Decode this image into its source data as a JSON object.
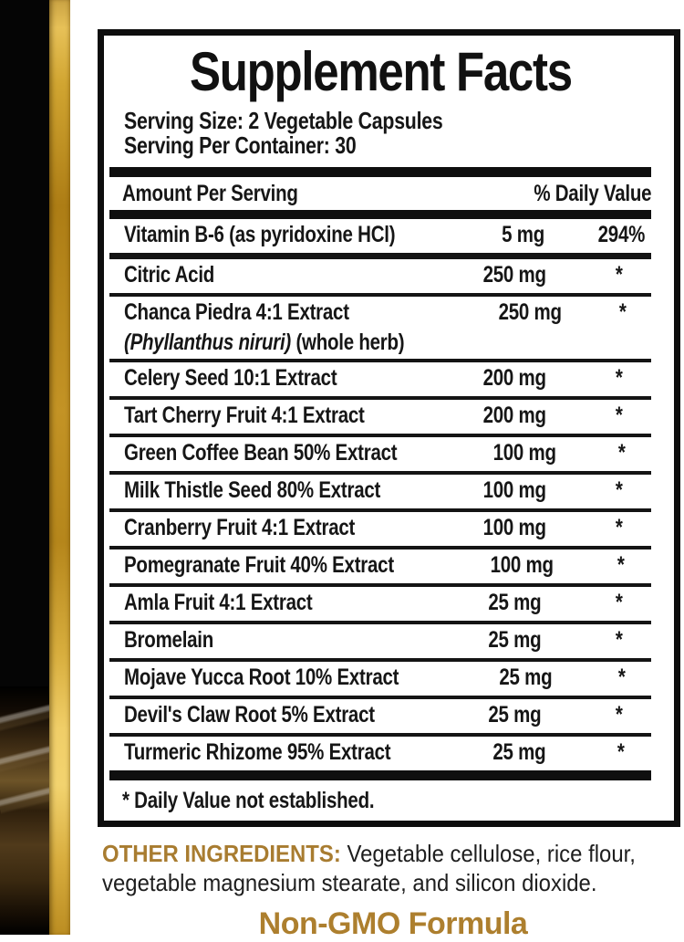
{
  "panel": {
    "title": "Supplement Facts",
    "serving_size": "Serving Size: 2 Vegetable Capsules",
    "servings_per_container": "Serving Per Container: 30",
    "header": {
      "amount": "Amount Per Serving",
      "dv": "% Daily Value"
    },
    "rows": [
      {
        "name": "Vitamin B-6 (as pyridoxine HCl)",
        "amount": "5 mg",
        "dv": "294%"
      },
      {
        "name": "Citric Acid",
        "amount": "250 mg",
        "dv": "*"
      },
      {
        "name": "Chanca Piedra 4:1 Extract",
        "name2_italic": "(Phyllanthus niruri)",
        "name2_rest": " (whole herb)",
        "amount": "250 mg",
        "dv": "*"
      },
      {
        "name": "Celery Seed 10:1 Extract",
        "amount": "200 mg",
        "dv": "*"
      },
      {
        "name": "Tart Cherry Fruit 4:1 Extract",
        "amount": "200 mg",
        "dv": "*"
      },
      {
        "name": "Green Coffee Bean 50% Extract",
        "amount": "100 mg",
        "dv": "*"
      },
      {
        "name": "Milk Thistle Seed 80% Extract",
        "amount": "100 mg",
        "dv": "*"
      },
      {
        "name": "Cranberry Fruit 4:1 Extract",
        "amount": "100 mg",
        "dv": "*"
      },
      {
        "name": "Pomegranate Fruit 40% Extract",
        "amount": "100 mg",
        "dv": "*"
      },
      {
        "name": "Amla Fruit 4:1 Extract",
        "amount": "25 mg",
        "dv": "*"
      },
      {
        "name": "Bromelain",
        "amount": "25 mg",
        "dv": "*"
      },
      {
        "name": "Mojave Yucca Root 10% Extract",
        "amount": "25 mg",
        "dv": "*"
      },
      {
        "name": "Devil's Claw Root 5% Extract",
        "amount": "25 mg",
        "dv": "*"
      },
      {
        "name": "Turmeric Rhizome 95% Extract",
        "amount": "25 mg",
        "dv": "*"
      }
    ],
    "footnote": "* Daily Value not established."
  },
  "other_ingredients": {
    "label": "OTHER INGREDIENTS:",
    "line1_rest": " Vegetable cellulose, rice flour,",
    "line2": "vegetable magnesium stearate, and silicon dioxide."
  },
  "non_gmo": "Non-GMO Formula",
  "colors": {
    "gold_text": "#a87c30",
    "non_gmo_gold": "#ad7f2e",
    "gold_bar": "#c49a2e",
    "panel_border": "#0d0d0d",
    "package_black": "#050505"
  }
}
